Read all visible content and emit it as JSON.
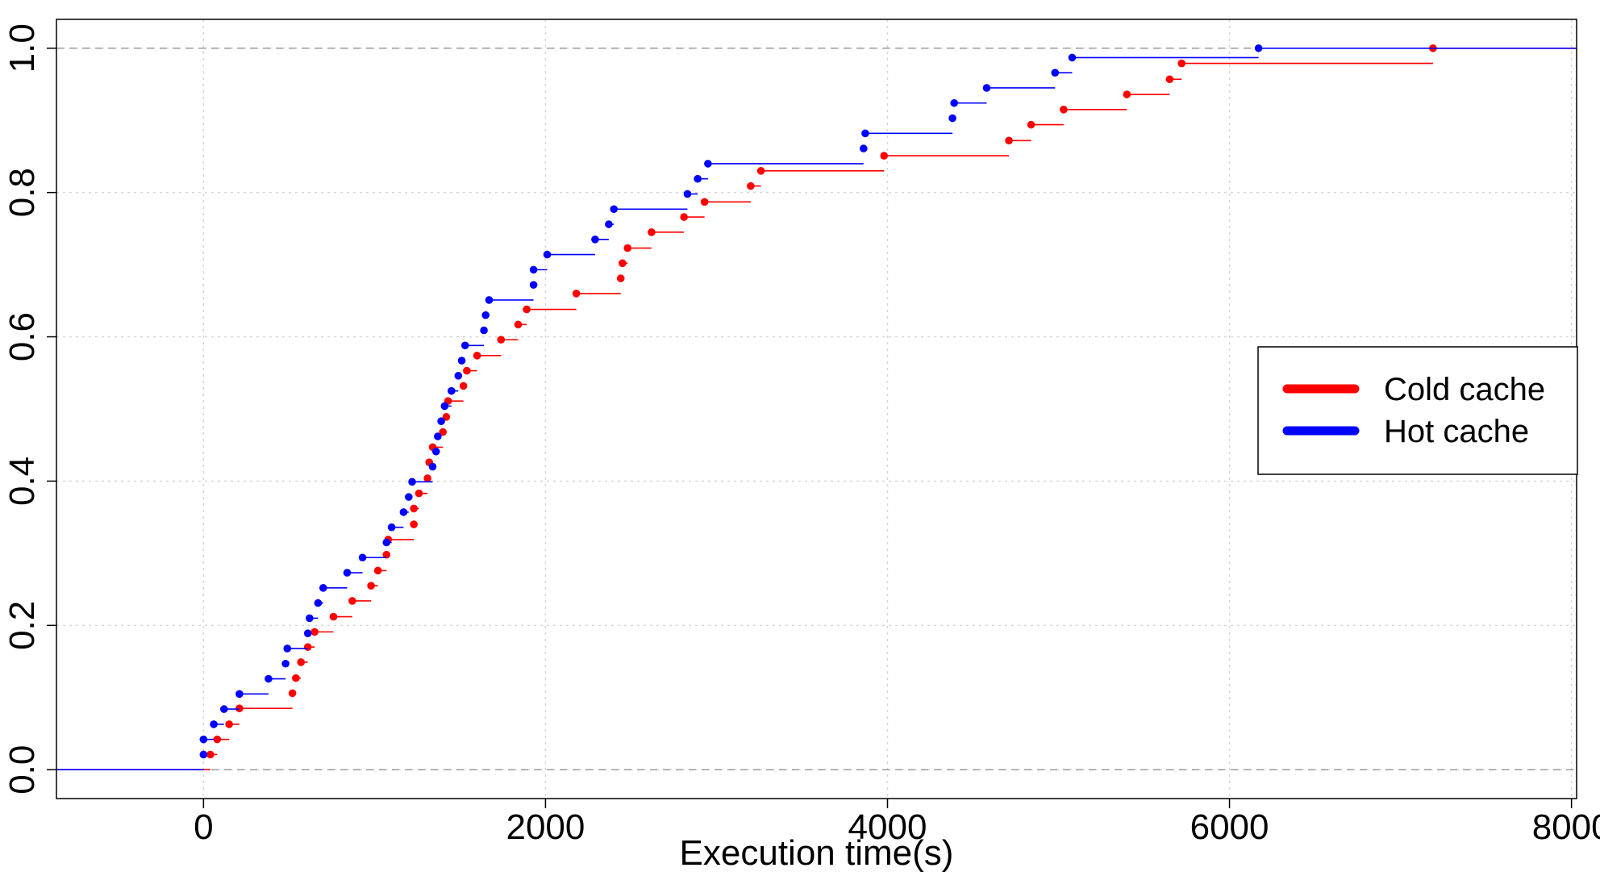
{
  "chart_data": {
    "type": "step",
    "title": "",
    "xlabel": "Execution time(s)",
    "ylabel": "",
    "xlim": [
      -860,
      8030
    ],
    "ylim": [
      -0.04,
      1.04
    ],
    "x_ticks": [
      0,
      2000,
      4000,
      6000,
      8000
    ],
    "x_tick_labels": [
      "0",
      "2000",
      "4000",
      "6000",
      "8000"
    ],
    "y_ticks": [
      0.0,
      0.2,
      0.4,
      0.6,
      0.8,
      1.0
    ],
    "y_tick_labels": [
      "0.0",
      "0.2",
      "0.4",
      "0.6",
      "0.8",
      "1.0"
    ],
    "grid": true,
    "reference_lines": [
      0,
      1
    ],
    "legend": {
      "position": "right",
      "entries": [
        {
          "label": "Cold cache",
          "color": "#ff0000"
        },
        {
          "label": "Hot cache",
          "color": "#0000ff"
        }
      ]
    },
    "series": [
      {
        "name": "Cold cache",
        "color": "#ff0000",
        "points": [
          [
            40,
            0.021
          ],
          [
            80,
            0.042
          ],
          [
            150,
            0.063
          ],
          [
            210,
            0.085
          ],
          [
            520,
            0.106
          ],
          [
            540,
            0.127
          ],
          [
            570,
            0.149
          ],
          [
            610,
            0.17
          ],
          [
            650,
            0.191
          ],
          [
            760,
            0.212
          ],
          [
            870,
            0.234
          ],
          [
            980,
            0.255
          ],
          [
            1020,
            0.276
          ],
          [
            1070,
            0.298
          ],
          [
            1080,
            0.319
          ],
          [
            1230,
            0.34
          ],
          [
            1230,
            0.362
          ],
          [
            1260,
            0.383
          ],
          [
            1310,
            0.404
          ],
          [
            1320,
            0.426
          ],
          [
            1340,
            0.447
          ],
          [
            1400,
            0.468
          ],
          [
            1420,
            0.489
          ],
          [
            1430,
            0.511
          ],
          [
            1520,
            0.532
          ],
          [
            1540,
            0.553
          ],
          [
            1600,
            0.574
          ],
          [
            1740,
            0.596
          ],
          [
            1840,
            0.617
          ],
          [
            1890,
            0.638
          ],
          [
            2180,
            0.66
          ],
          [
            2440,
            0.681
          ],
          [
            2450,
            0.702
          ],
          [
            2480,
            0.723
          ],
          [
            2620,
            0.745
          ],
          [
            2810,
            0.766
          ],
          [
            2930,
            0.787
          ],
          [
            3200,
            0.809
          ],
          [
            3260,
            0.83
          ],
          [
            3980,
            0.851
          ],
          [
            4710,
            0.872
          ],
          [
            4840,
            0.894
          ],
          [
            5030,
            0.915
          ],
          [
            5400,
            0.936
          ],
          [
            5650,
            0.957
          ],
          [
            5720,
            0.979
          ],
          [
            7190,
            1.0
          ]
        ]
      },
      {
        "name": "Hot cache",
        "color": "#0000ff",
        "points": [
          [
            0,
            0.021
          ],
          [
            0,
            0.042
          ],
          [
            60,
            0.063
          ],
          [
            120,
            0.084
          ],
          [
            210,
            0.105
          ],
          [
            380,
            0.126
          ],
          [
            480,
            0.147
          ],
          [
            490,
            0.168
          ],
          [
            610,
            0.189
          ],
          [
            620,
            0.21
          ],
          [
            670,
            0.231
          ],
          [
            700,
            0.252
          ],
          [
            840,
            0.273
          ],
          [
            930,
            0.294
          ],
          [
            1070,
            0.315
          ],
          [
            1100,
            0.336
          ],
          [
            1170,
            0.357
          ],
          [
            1200,
            0.378
          ],
          [
            1220,
            0.399
          ],
          [
            1340,
            0.42
          ],
          [
            1360,
            0.441
          ],
          [
            1370,
            0.462
          ],
          [
            1390,
            0.483
          ],
          [
            1410,
            0.504
          ],
          [
            1450,
            0.525
          ],
          [
            1490,
            0.546
          ],
          [
            1510,
            0.567
          ],
          [
            1530,
            0.588
          ],
          [
            1640,
            0.609
          ],
          [
            1650,
            0.63
          ],
          [
            1670,
            0.651
          ],
          [
            1930,
            0.672
          ],
          [
            1930,
            0.693
          ],
          [
            2010,
            0.714
          ],
          [
            2290,
            0.735
          ],
          [
            2370,
            0.756
          ],
          [
            2400,
            0.777
          ],
          [
            2830,
            0.798
          ],
          [
            2890,
            0.819
          ],
          [
            2950,
            0.84
          ],
          [
            3860,
            0.861
          ],
          [
            3870,
            0.882
          ],
          [
            4380,
            0.903
          ],
          [
            4390,
            0.924
          ],
          [
            4580,
            0.945
          ],
          [
            4980,
            0.966
          ],
          [
            5080,
            0.987
          ],
          [
            6170,
            1.0
          ]
        ]
      }
    ]
  }
}
